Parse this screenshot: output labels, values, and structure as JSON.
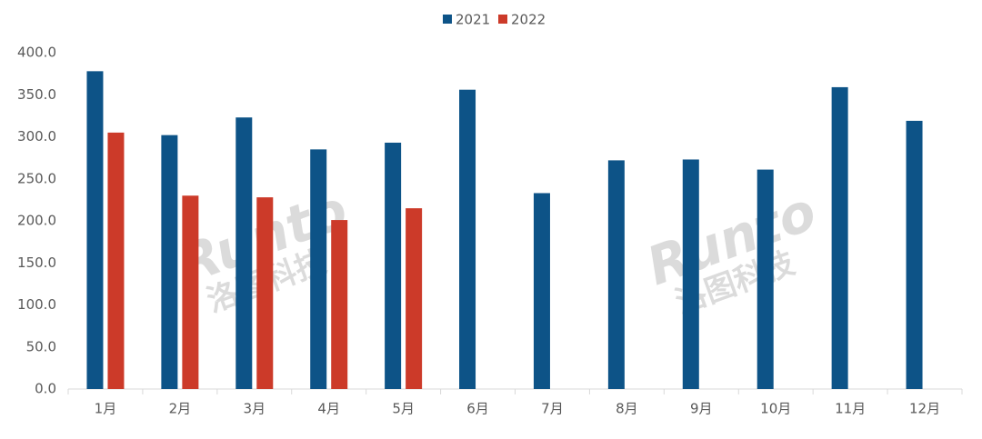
{
  "chart_data": {
    "type": "bar",
    "categories": [
      "1月",
      "2月",
      "3月",
      "4月",
      "5月",
      "6月",
      "7月",
      "8月",
      "9月",
      "10月",
      "11月",
      "12月"
    ],
    "series": [
      {
        "name": "2021",
        "color": "#0d5387",
        "values": [
          378,
          302,
          323,
          285,
          293,
          356,
          233,
          272,
          273,
          261,
          359,
          319
        ]
      },
      {
        "name": "2022",
        "color": "#cc3a29",
        "values": [
          305,
          230,
          228,
          201,
          215,
          null,
          null,
          null,
          null,
          null,
          null,
          null
        ]
      }
    ],
    "ylim": [
      0,
      400
    ],
    "yticks": [
      {
        "value": 0,
        "label": "0.0"
      },
      {
        "value": 50,
        "label": "50.0"
      },
      {
        "value": 100,
        "label": "100.0"
      },
      {
        "value": 150,
        "label": "150.0"
      },
      {
        "value": 200,
        "label": "200.0"
      },
      {
        "value": 250,
        "label": "250.0"
      },
      {
        "value": 300,
        "label": "300.0"
      },
      {
        "value": 350,
        "label": "350.0"
      },
      {
        "value": 400,
        "label": "400.0"
      }
    ],
    "grid": false,
    "legend": "top",
    "watermark": {
      "logo": "Runto",
      "name": "洛图科技"
    }
  }
}
